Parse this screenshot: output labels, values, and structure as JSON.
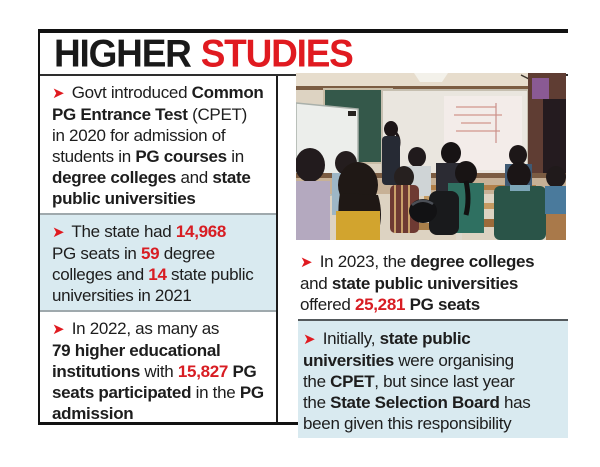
{
  "title": {
    "part_black": "HIGHER",
    "part_red": "STUDIES"
  },
  "icons": {
    "bullet_arrow": "➤"
  },
  "colors": {
    "accent_red": "#e01a20",
    "number_red": "#d81d23",
    "highlight_bg": "#d9eaf0",
    "border_black": "#121212",
    "divider_gray": "#9fa9ad"
  },
  "photo": {
    "description": "Students seated in a classroom facing a projector screen while an instructor stands beside it"
  },
  "bullets": {
    "left": [
      {
        "segments": [
          {
            "t": " Govt introduced "
          },
          {
            "t": "Common",
            "b": true
          },
          {
            "br": true
          },
          {
            "t": "PG Entrance Test",
            "b": true
          },
          {
            "t": " (CPET)"
          },
          {
            "br": true
          },
          {
            "t": "in 2020 for admission of"
          },
          {
            "br": true
          },
          {
            "t": "students in "
          },
          {
            "t": "PG courses",
            "b": true
          },
          {
            "t": " in"
          },
          {
            "br": true
          },
          {
            "t": "degree colleges",
            "b": true
          },
          {
            "t": " and "
          },
          {
            "t": "state",
            "b": true
          },
          {
            "br": true
          },
          {
            "t": "public universities",
            "b": true
          }
        ]
      },
      {
        "segments": [
          {
            "t": " The state had "
          },
          {
            "t": "14,968",
            "b": true,
            "r": true
          },
          {
            "br": true
          },
          {
            "t": "PG seats in "
          },
          {
            "t": "59",
            "b": true,
            "r": true
          },
          {
            "t": " degree"
          },
          {
            "br": true
          },
          {
            "t": "colleges and "
          },
          {
            "t": "14",
            "b": true,
            "r": true
          },
          {
            "t": " state public"
          },
          {
            "br": true
          },
          {
            "t": "universities in 2021"
          }
        ]
      },
      {
        "segments": [
          {
            "t": " In 2022, as many as"
          },
          {
            "br": true
          },
          {
            "t": "79 higher educational",
            "b": true
          },
          {
            "br": true
          },
          {
            "t": "institutions",
            "b": true
          },
          {
            "t": " with "
          },
          {
            "t": "15,827",
            "b": true,
            "r": true
          },
          {
            "t": " PG",
            "b": true
          },
          {
            "br": true
          },
          {
            "t": "seats participated",
            "b": true
          },
          {
            "t": " in the "
          },
          {
            "t": "PG",
            "b": true
          },
          {
            "br": true
          },
          {
            "t": "admission",
            "b": true
          }
        ]
      }
    ],
    "right": [
      {
        "segments": [
          {
            "t": " In 2023, the "
          },
          {
            "t": "degree colleges",
            "b": true
          },
          {
            "br": true
          },
          {
            "t": "and "
          },
          {
            "t": "state public universities",
            "b": true
          },
          {
            "br": true
          },
          {
            "t": "offered "
          },
          {
            "t": "25,281",
            "b": true,
            "r": true
          },
          {
            "t": " PG seats",
            "b": true
          }
        ]
      },
      {
        "segments": [
          {
            "t": " Initially, "
          },
          {
            "t": "state public",
            "b": true
          },
          {
            "br": true
          },
          {
            "t": "universities",
            "b": true
          },
          {
            "t": " were organising"
          },
          {
            "br": true
          },
          {
            "t": "the "
          },
          {
            "t": "CPET",
            "b": true
          },
          {
            "t": ", but since last year"
          },
          {
            "br": true
          },
          {
            "t": "the "
          },
          {
            "t": "State Selection Board",
            "b": true
          },
          {
            "t": " has"
          },
          {
            "br": true
          },
          {
            "t": "been given this responsibility"
          }
        ]
      }
    ]
  }
}
